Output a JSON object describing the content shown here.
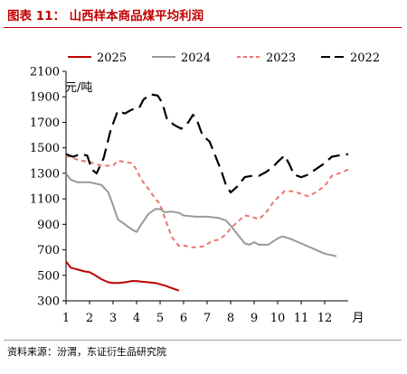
{
  "header": {
    "title": "图表 11：  山西样本商品煤平均利润"
  },
  "footer": {
    "source": "资料来源：汾渭，东证衍生品研究院"
  },
  "chart_data": {
    "type": "line",
    "unit_label": "元/吨",
    "x_unit_label": "月",
    "x_ticks": [
      1,
      2,
      3,
      4,
      5,
      6,
      7,
      8,
      9,
      10,
      11,
      12
    ],
    "xlim": [
      1,
      13
    ],
    "ylim": [
      300,
      2100
    ],
    "y_ticks": [
      300,
      500,
      700,
      900,
      1100,
      1300,
      1500,
      1700,
      1900,
      2100
    ],
    "grid": false,
    "legend_position": "top",
    "series": [
      {
        "name": "2025",
        "color": "#c00000",
        "dash": "solid",
        "points": [
          [
            1.0,
            610
          ],
          [
            1.2,
            560
          ],
          [
            1.5,
            545
          ],
          [
            1.8,
            530
          ],
          [
            2.0,
            525
          ],
          [
            2.2,
            505
          ],
          [
            2.5,
            470
          ],
          [
            2.8,
            445
          ],
          [
            3.0,
            440
          ],
          [
            3.2,
            440
          ],
          [
            3.5,
            445
          ],
          [
            3.8,
            455
          ],
          [
            4.0,
            455
          ],
          [
            4.2,
            450
          ],
          [
            4.5,
            445
          ],
          [
            4.8,
            440
          ],
          [
            5.0,
            430
          ],
          [
            5.2,
            420
          ],
          [
            5.5,
            400
          ],
          [
            5.8,
            380
          ]
        ]
      },
      {
        "name": "2024",
        "color": "#999999",
        "dash": "solid",
        "points": [
          [
            1.0,
            1300
          ],
          [
            1.2,
            1250
          ],
          [
            1.5,
            1230
          ],
          [
            2.0,
            1230
          ],
          [
            2.5,
            1210
          ],
          [
            2.8,
            1150
          ],
          [
            3.0,
            1050
          ],
          [
            3.2,
            940
          ],
          [
            3.5,
            900
          ],
          [
            3.8,
            860
          ],
          [
            4.0,
            840
          ],
          [
            4.2,
            900
          ],
          [
            4.5,
            980
          ],
          [
            4.8,
            1020
          ],
          [
            5.0,
            1020
          ],
          [
            5.2,
            995
          ],
          [
            5.5,
            1000
          ],
          [
            5.8,
            990
          ],
          [
            6.0,
            970
          ],
          [
            6.5,
            960
          ],
          [
            7.0,
            960
          ],
          [
            7.5,
            950
          ],
          [
            7.8,
            930
          ],
          [
            8.0,
            890
          ],
          [
            8.3,
            820
          ],
          [
            8.6,
            750
          ],
          [
            8.8,
            740
          ],
          [
            9.0,
            760
          ],
          [
            9.2,
            740
          ],
          [
            9.6,
            740
          ],
          [
            10.0,
            790
          ],
          [
            10.2,
            805
          ],
          [
            10.5,
            790
          ],
          [
            11.0,
            750
          ],
          [
            11.5,
            710
          ],
          [
            12.0,
            670
          ],
          [
            12.5,
            650
          ]
        ]
      },
      {
        "name": "2023",
        "color": "#e8776f",
        "dash": "dashed",
        "points": [
          [
            1.0,
            1440
          ],
          [
            1.3,
            1420
          ],
          [
            1.6,
            1400
          ],
          [
            2.0,
            1390
          ],
          [
            2.3,
            1370
          ],
          [
            2.6,
            1360
          ],
          [
            3.0,
            1360
          ],
          [
            3.2,
            1400
          ],
          [
            3.5,
            1390
          ],
          [
            3.8,
            1380
          ],
          [
            4.0,
            1330
          ],
          [
            4.2,
            1250
          ],
          [
            4.5,
            1180
          ],
          [
            4.8,
            1100
          ],
          [
            5.0,
            1060
          ],
          [
            5.2,
            950
          ],
          [
            5.5,
            800
          ],
          [
            5.8,
            730
          ],
          [
            6.0,
            735
          ],
          [
            6.3,
            720
          ],
          [
            6.6,
            720
          ],
          [
            6.9,
            730
          ],
          [
            7.2,
            770
          ],
          [
            7.5,
            780
          ],
          [
            7.8,
            820
          ],
          [
            8.0,
            870
          ],
          [
            8.3,
            920
          ],
          [
            8.6,
            970
          ],
          [
            8.9,
            960
          ],
          [
            9.2,
            940
          ],
          [
            9.5,
            990
          ],
          [
            9.8,
            1070
          ],
          [
            10.0,
            1110
          ],
          [
            10.3,
            1160
          ],
          [
            10.6,
            1160
          ],
          [
            11.0,
            1140
          ],
          [
            11.3,
            1120
          ],
          [
            11.6,
            1150
          ],
          [
            12.0,
            1200
          ],
          [
            12.3,
            1280
          ],
          [
            12.6,
            1300
          ],
          [
            13.0,
            1330
          ]
        ]
      },
      {
        "name": "2022",
        "color": "#000000",
        "dash": "longdash",
        "points": [
          [
            1.0,
            1450
          ],
          [
            1.3,
            1430
          ],
          [
            1.6,
            1450
          ],
          [
            1.9,
            1440
          ],
          [
            2.1,
            1330
          ],
          [
            2.3,
            1300
          ],
          [
            2.6,
            1420
          ],
          [
            2.9,
            1640
          ],
          [
            3.2,
            1790
          ],
          [
            3.5,
            1770
          ],
          [
            3.8,
            1800
          ],
          [
            4.1,
            1810
          ],
          [
            4.3,
            1880
          ],
          [
            4.6,
            1920
          ],
          [
            4.9,
            1910
          ],
          [
            5.1,
            1850
          ],
          [
            5.3,
            1720
          ],
          [
            5.6,
            1680
          ],
          [
            5.9,
            1650
          ],
          [
            6.2,
            1700
          ],
          [
            6.4,
            1760
          ],
          [
            6.6,
            1700
          ],
          [
            6.8,
            1600
          ],
          [
            7.1,
            1550
          ],
          [
            7.3,
            1460
          ],
          [
            7.6,
            1320
          ],
          [
            7.8,
            1210
          ],
          [
            8.0,
            1150
          ],
          [
            8.3,
            1200
          ],
          [
            8.6,
            1270
          ],
          [
            8.9,
            1280
          ],
          [
            9.2,
            1280
          ],
          [
            9.5,
            1310
          ],
          [
            9.8,
            1350
          ],
          [
            10.0,
            1390
          ],
          [
            10.3,
            1440
          ],
          [
            10.5,
            1370
          ],
          [
            10.7,
            1290
          ],
          [
            11.0,
            1270
          ],
          [
            11.3,
            1290
          ],
          [
            11.6,
            1330
          ],
          [
            12.0,
            1380
          ],
          [
            12.3,
            1430
          ],
          [
            12.6,
            1440
          ],
          [
            13.0,
            1450
          ]
        ]
      }
    ]
  }
}
